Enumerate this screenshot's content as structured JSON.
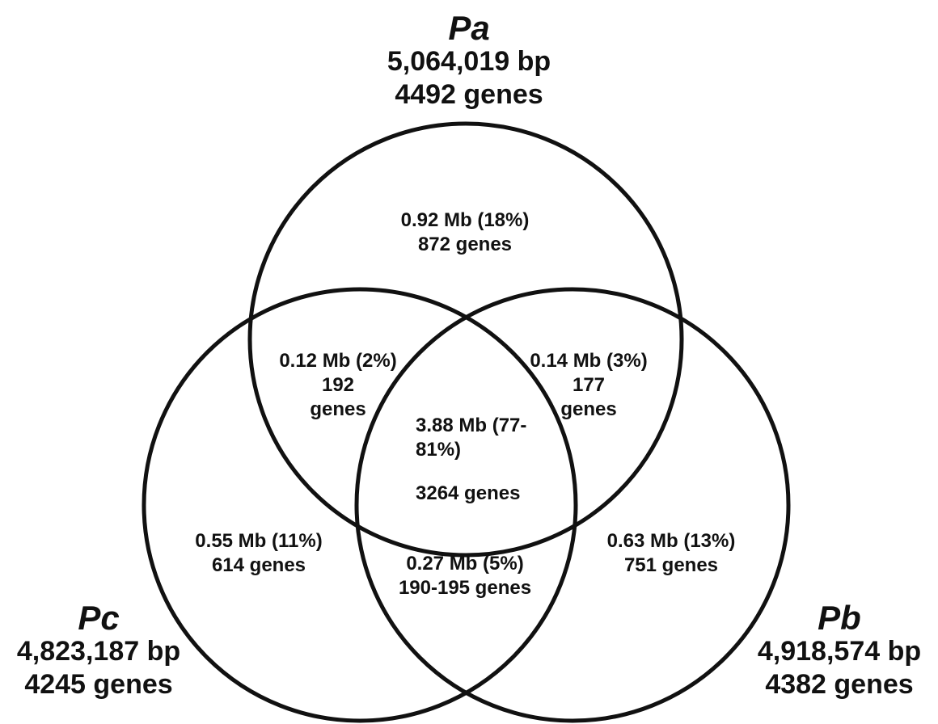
{
  "sets": {
    "pa": {
      "name": "Pa",
      "size": "5,064,019 bp",
      "genes": "4492 genes"
    },
    "pb": {
      "name": "Pb",
      "size": "4,918,574 bp",
      "genes": "4382 genes"
    },
    "pc": {
      "name": "Pc",
      "size": "4,823,187 bp",
      "genes": "4245 genes"
    }
  },
  "regions": {
    "pa_only": {
      "line1": "0.92 Mb (18%)",
      "line2": "872 genes"
    },
    "pa_pc": {
      "line1": "0.12 Mb (2%)",
      "line2": "192",
      "line3": "genes"
    },
    "pa_pb": {
      "line1": "0.14 Mb (3%)",
      "line2": "177",
      "line3": "genes"
    },
    "core": {
      "line1": "3.88 Mb (77-",
      "line2": "81%)",
      "line3": "3264 genes"
    },
    "pc_only": {
      "line1": "0.55 Mb (11%)",
      "line2": "614 genes"
    },
    "pb_only": {
      "line1": "0.63 Mb (13%)",
      "line2": "751 genes"
    },
    "pb_pc": {
      "line1": "0.27 Mb (5%)",
      "line2": "190-195 genes"
    }
  }
}
